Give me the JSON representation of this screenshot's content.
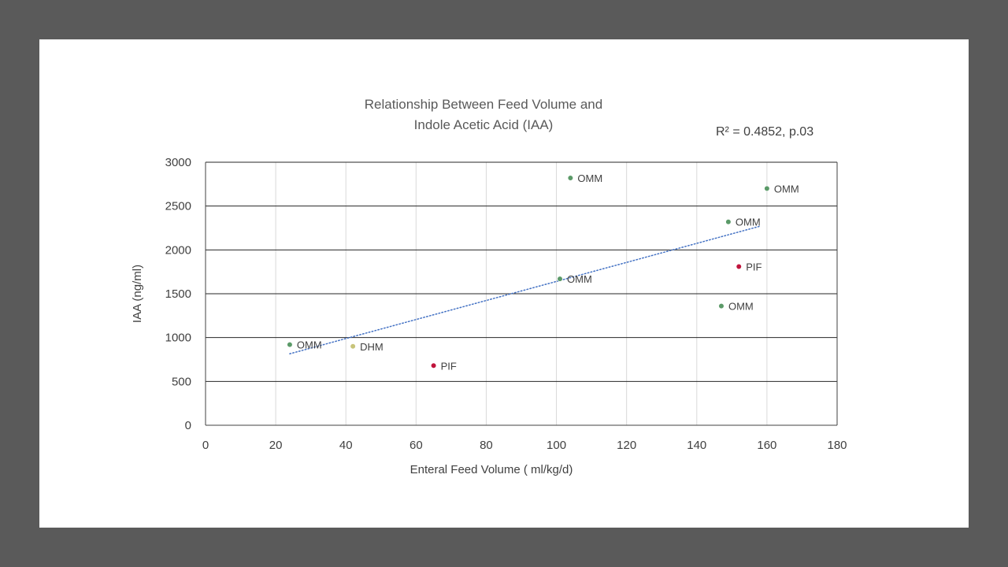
{
  "chart_data": {
    "type": "scatter",
    "title_lines": [
      "Relationship Between Feed Volume and",
      "Indole Acetic Acid (IAA)"
    ],
    "annotation": "R² = 0.4852, p.03",
    "xlabel": "Enteral Feed Volume ( ml/kg/d)",
    "ylabel": "IAA (ng/ml)",
    "xlim": [
      0,
      180
    ],
    "ylim": [
      0,
      3000
    ],
    "x_ticks": [
      0,
      20,
      40,
      60,
      80,
      100,
      120,
      140,
      160,
      180
    ],
    "y_ticks": [
      0,
      500,
      1000,
      1500,
      2000,
      2500,
      3000
    ],
    "grid": true,
    "points": [
      {
        "x": 24,
        "y": 920,
        "label": "OMM",
        "color": "#5b9a68"
      },
      {
        "x": 42,
        "y": 900,
        "label": "DHM",
        "color": "#c8c47a"
      },
      {
        "x": 65,
        "y": 680,
        "label": "PIF",
        "color": "#c0143c"
      },
      {
        "x": 101,
        "y": 1670,
        "label": "OMM",
        "color": "#5b9a68"
      },
      {
        "x": 104,
        "y": 2820,
        "label": "OMM",
        "color": "#5b9a68"
      },
      {
        "x": 147,
        "y": 1360,
        "label": "OMM",
        "color": "#5b9a68"
      },
      {
        "x": 149,
        "y": 2320,
        "label": "OMM",
        "color": "#5b9a68"
      },
      {
        "x": 152,
        "y": 1810,
        "label": "PIF",
        "color": "#c0143c"
      },
      {
        "x": 160,
        "y": 2700,
        "label": "OMM",
        "color": "#5b9a68"
      }
    ],
    "trendline": {
      "type": "linear",
      "x_start": 24,
      "x_end": 158,
      "y_start": 815,
      "y_end": 2270,
      "color": "#4472c4",
      "style": "dotted"
    }
  }
}
